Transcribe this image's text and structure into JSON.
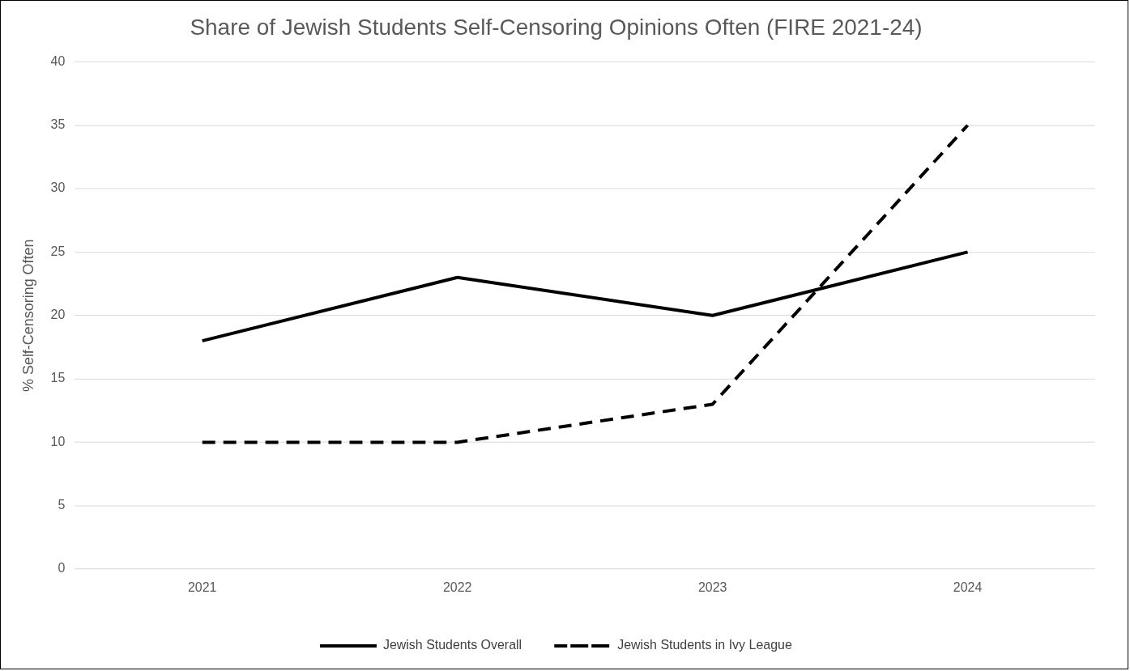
{
  "chart_data": {
    "type": "line",
    "title": "Share of Jewish Students Self-Censoring Opinions Often (FIRE 2021-24)",
    "ylabel": "% Self-Censoring Often",
    "categories": [
      "2021",
      "2022",
      "2023",
      "2024"
    ],
    "series": [
      {
        "name": "Jewish Students Overall",
        "color": "#000000",
        "line_style": "solid",
        "values": [
          18,
          23,
          20,
          25
        ]
      },
      {
        "name": "Jewish Students in Ivy League",
        "color": "#000000",
        "line_style": "dashed",
        "values": [
          10,
          10,
          13,
          35
        ]
      }
    ],
    "ylim": [
      0,
      40
    ],
    "yticks": [
      0,
      5,
      10,
      15,
      20,
      25,
      30,
      35,
      40
    ],
    "grid": "y",
    "legend": "bottom"
  }
}
